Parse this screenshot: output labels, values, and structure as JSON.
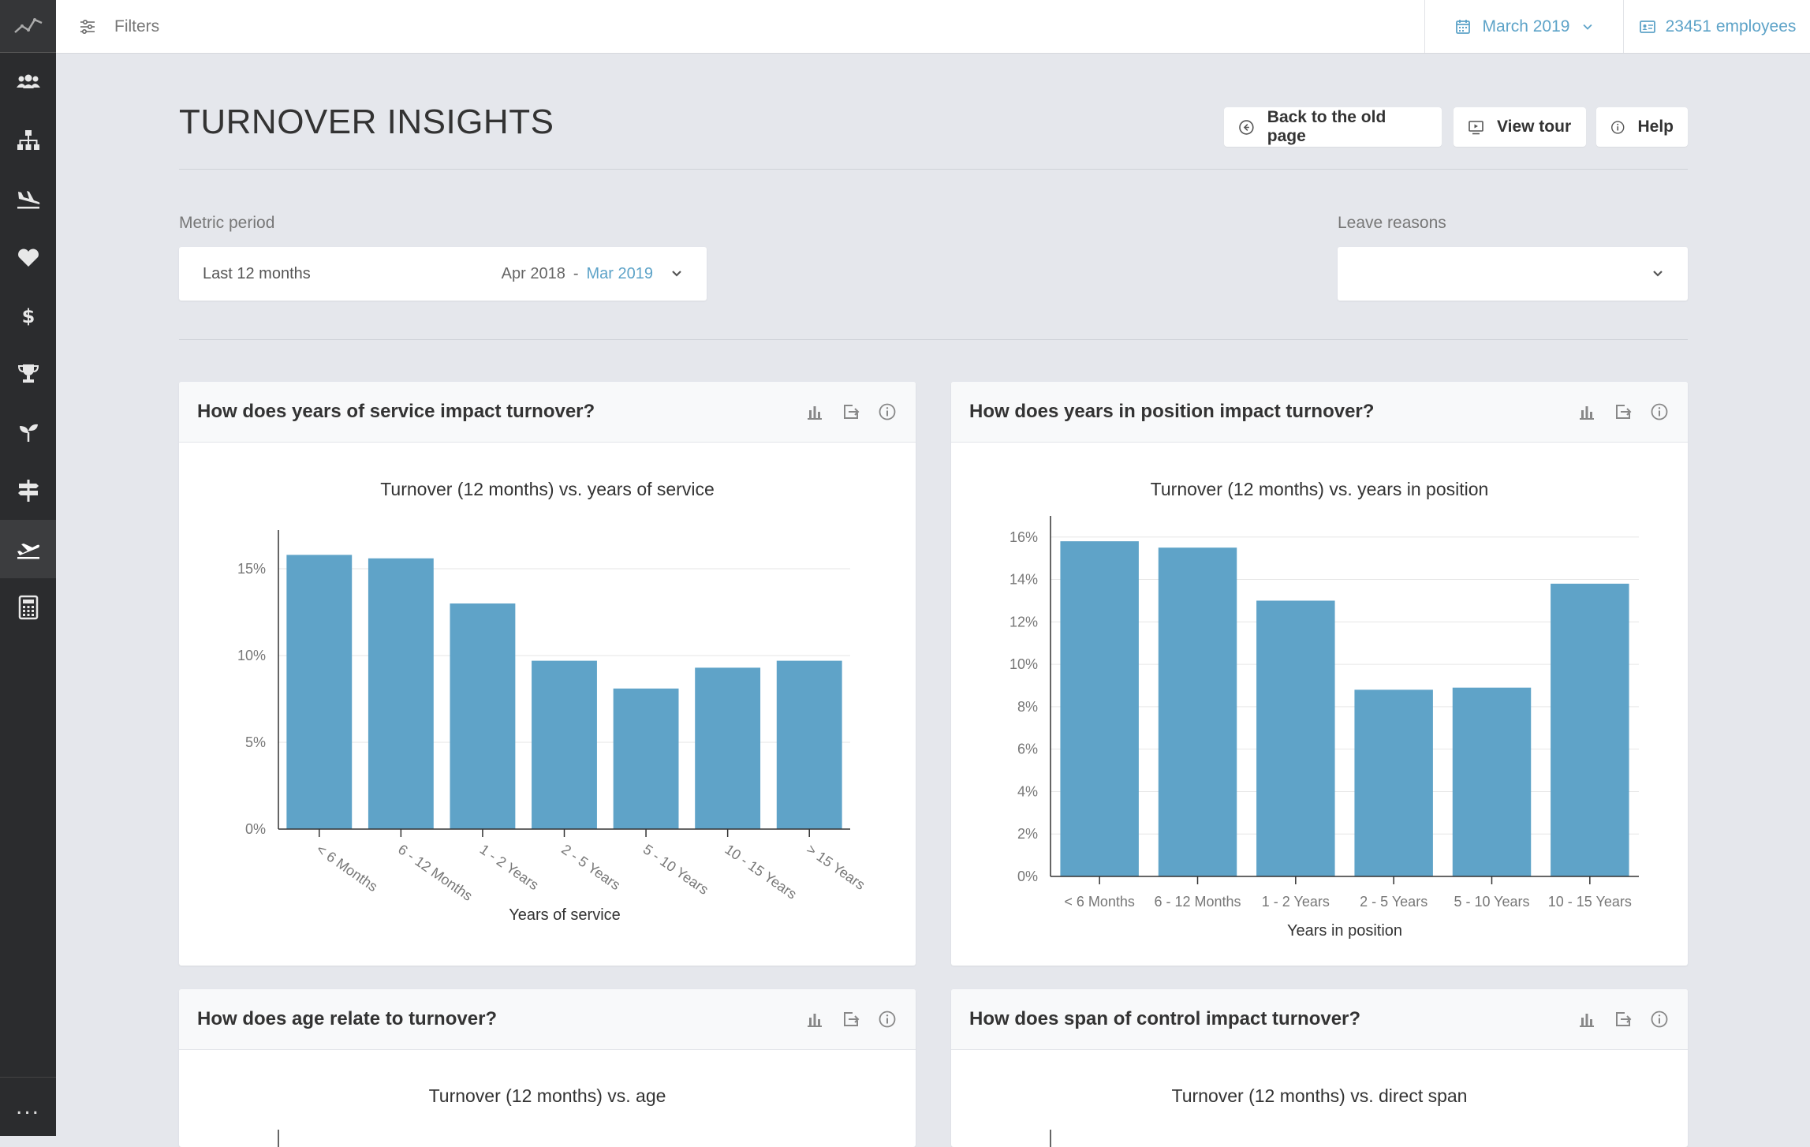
{
  "topbar": {
    "filters_label": "Filters",
    "date_label": "March 2019",
    "employees_label": "23451 employees"
  },
  "sidebar": {
    "items": [
      {
        "icon": "people-icon"
      },
      {
        "icon": "org-chart-icon"
      },
      {
        "icon": "plane-landing-icon"
      },
      {
        "icon": "heart-icon"
      },
      {
        "icon": "dollar-icon"
      },
      {
        "icon": "trophy-icon"
      },
      {
        "icon": "sprout-icon"
      },
      {
        "icon": "signpost-icon"
      },
      {
        "icon": "plane-takeoff-icon",
        "active": true
      },
      {
        "icon": "calculator-icon"
      }
    ],
    "more_label": "..."
  },
  "header": {
    "title": "TURNOVER INSIGHTS",
    "buttons": {
      "back": "Back to the old page",
      "tour": "View tour",
      "help": "Help"
    }
  },
  "filters": {
    "metric_period_label": "Metric period",
    "metric_period_value": "Last 12 months",
    "range_start": "Apr 2018",
    "range_sep": "-",
    "range_end": "Mar 2019",
    "leave_reasons_label": "Leave reasons",
    "leave_reasons_value": ""
  },
  "colors": {
    "bar": "#5fa3c8",
    "accent": "#5da3c8"
  },
  "cards": [
    {
      "title": "How does years of service impact turnover?"
    },
    {
      "title": "How does years in position impact turnover?"
    },
    {
      "title": "How does age relate to turnover?"
    },
    {
      "title": "How does span of control impact turnover?"
    }
  ],
  "chart_data": [
    {
      "type": "bar",
      "title": "Turnover (12 months) vs. years of service",
      "xlabel": "Years of service",
      "ylabel": "",
      "categories": [
        "< 6 Months",
        "6 - 12 Months",
        "1 - 2 Years",
        "2 - 5 Years",
        "5 - 10 Years",
        "10 - 15 Years",
        "> 15 Years"
      ],
      "values": [
        15.8,
        15.6,
        13.0,
        9.7,
        8.1,
        9.3,
        9.7
      ],
      "ylim": [
        0,
        16.5
      ],
      "yticks": [
        0,
        5,
        10,
        15
      ],
      "ytick_labels": [
        "0%",
        "5%",
        "10%",
        "15%"
      ],
      "grid": true
    },
    {
      "type": "bar",
      "title": "Turnover (12 months) vs. years in position",
      "xlabel": "Years in position",
      "ylabel": "",
      "categories": [
        "< 6 Months",
        "6 - 12 Months",
        "1 - 2 Years",
        "2 - 5 Years",
        "5 - 10 Years",
        "10 - 15 Years"
      ],
      "values": [
        15.8,
        15.5,
        13.0,
        8.8,
        8.9,
        13.8
      ],
      "ylim": [
        0,
        16.4
      ],
      "yticks": [
        0,
        2,
        4,
        6,
        8,
        10,
        12,
        14,
        16
      ],
      "ytick_labels": [
        "0%",
        "2%",
        "4%",
        "6%",
        "8%",
        "10%",
        "12%",
        "14%",
        "16%"
      ],
      "grid": true
    },
    {
      "type": "bar",
      "title": "Turnover (12 months) vs. age"
    },
    {
      "type": "bar",
      "title": "Turnover (12 months) vs. direct span"
    }
  ]
}
